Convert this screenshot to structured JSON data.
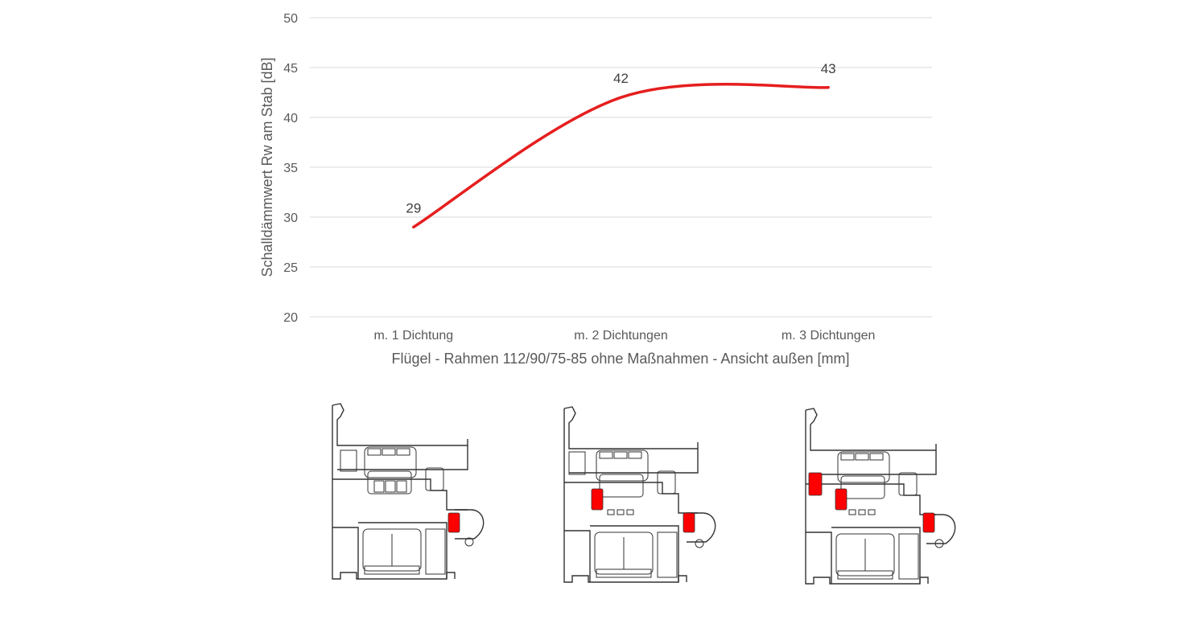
{
  "chart_data": {
    "type": "line",
    "categories": [
      "m. 1 Dichtung",
      "m. 2 Dichtungen",
      "m. 3 Dichtungen"
    ],
    "series": [
      {
        "values": [
          29,
          42,
          43
        ],
        "color": "#e61e1e"
      }
    ],
    "data_labels": [
      "29",
      "42",
      "43"
    ],
    "ylabel": "Schalldämmwert  Rw am Stab [dB]",
    "xlabel": "Flügel - Rahmen 112/90/75-85 ohne Maßnahmen - Ansicht außen [mm]",
    "ylim": [
      20,
      50
    ],
    "yticks": [
      20,
      25,
      30,
      35,
      40,
      45,
      50
    ],
    "grid": true,
    "smooth": true
  },
  "illustrations": [
    {
      "name": "profile-1-seal",
      "seal_count": 1
    },
    {
      "name": "profile-2-seals",
      "seal_count": 2
    },
    {
      "name": "profile-3-seals",
      "seal_count": 3
    }
  ],
  "colors": {
    "line": "#e61e1e",
    "seal": "#ff0000",
    "grid": "#d9d9d9",
    "text": "#595959"
  }
}
